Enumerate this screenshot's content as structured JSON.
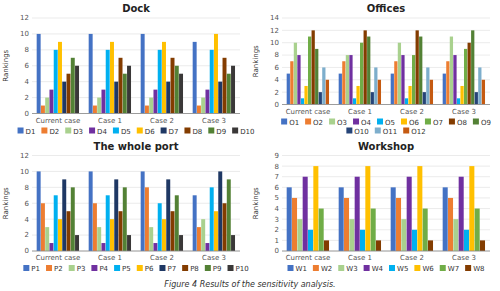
{
  "title": "Figure 4 Results of the sensitivity analysis.",
  "chart_data": [
    {
      "type": "bar",
      "title": "Dock",
      "y_label": "Rankings",
      "categories": [
        "Current case",
        "Case 1",
        "Case 2",
        "Case 3"
      ],
      "series": [
        {
          "name": "D1",
          "color": "#4472c4",
          "values": [
            10,
            10,
            10,
            9
          ]
        },
        {
          "name": "D2",
          "color": "#ed7d31",
          "values": [
            1,
            1,
            1,
            1
          ]
        },
        {
          "name": "D3",
          "color": "#a9d18e",
          "values": [
            2,
            2,
            2,
            2
          ]
        },
        {
          "name": "D4",
          "color": "#7030a0",
          "values": [
            3,
            3,
            3,
            3
          ]
        },
        {
          "name": "D5",
          "color": "#00b0f0",
          "values": [
            8,
            8,
            8,
            8
          ]
        },
        {
          "name": "D6",
          "color": "#ffc000",
          "values": [
            9,
            9,
            9,
            10
          ]
        },
        {
          "name": "D7",
          "color": "#1f3864",
          "values": [
            4,
            4,
            4,
            4
          ]
        },
        {
          "name": "D8",
          "color": "#833c00",
          "values": [
            5,
            7,
            7,
            7
          ]
        },
        {
          "name": "D9",
          "color": "#538135",
          "values": [
            7,
            5,
            6,
            5
          ]
        },
        {
          "name": "D10",
          "color": "#3a3838",
          "values": [
            6,
            6,
            5,
            6
          ]
        }
      ],
      "ylim": [
        0,
        12
      ],
      "yticks": [
        0,
        2,
        4,
        6,
        8,
        10,
        12
      ],
      "grid": true,
      "legend": "bottom"
    },
    {
      "type": "bar",
      "title": "Offices",
      "y_label": "Rankings",
      "categories": [
        "Current case",
        "Case 1",
        "Case 2",
        "Case 3"
      ],
      "series": [
        {
          "name": "O1",
          "color": "#4472c4",
          "values": [
            5,
            5,
            5,
            5
          ]
        },
        {
          "name": "O2",
          "color": "#ed7d31",
          "values": [
            7,
            7,
            7,
            7
          ]
        },
        {
          "name": "O3",
          "color": "#a9d18e",
          "values": [
            10,
            8,
            10,
            11
          ]
        },
        {
          "name": "O4",
          "color": "#7030a0",
          "values": [
            8,
            8,
            8,
            8
          ]
        },
        {
          "name": "O5",
          "color": "#00b0f0",
          "values": [
            1,
            1,
            1,
            1
          ]
        },
        {
          "name": "O6",
          "color": "#ffc000",
          "values": [
            3,
            3,
            3,
            3
          ]
        },
        {
          "name": "O7",
          "color": "#70ad47",
          "values": [
            11,
            10,
            8,
            9
          ]
        },
        {
          "name": "O8",
          "color": "#833c00",
          "values": [
            12,
            12,
            12,
            10
          ]
        },
        {
          "name": "O9",
          "color": "#538135",
          "values": [
            9,
            11,
            11,
            12
          ]
        },
        {
          "name": "O10",
          "color": "#264478",
          "values": [
            2,
            2,
            2,
            2
          ]
        },
        {
          "name": "O11",
          "color": "#7daecc",
          "values": [
            6,
            6,
            6,
            6
          ]
        },
        {
          "name": "O12",
          "color": "#c55a11",
          "values": [
            4,
            4,
            4,
            4
          ]
        }
      ],
      "ylim": [
        0,
        14
      ],
      "yticks": [
        0,
        2,
        4,
        6,
        8,
        10,
        12,
        14
      ],
      "grid": true,
      "legend": "bottom"
    },
    {
      "type": "bar",
      "title": "The whole port",
      "y_label": "Rankings",
      "categories": [
        "Current case",
        "Case 1",
        "Case 2",
        "Case 3"
      ],
      "series": [
        {
          "name": "P1",
          "color": "#4472c4",
          "values": [
            10,
            10,
            10,
            7
          ]
        },
        {
          "name": "P2",
          "color": "#ed7d31",
          "values": [
            6,
            6,
            8,
            3
          ]
        },
        {
          "name": "P3",
          "color": "#a9d18e",
          "values": [
            3,
            3,
            3,
            4
          ]
        },
        {
          "name": "P4",
          "color": "#7030a0",
          "values": [
            1,
            1,
            1,
            1
          ]
        },
        {
          "name": "P5",
          "color": "#00b0f0",
          "values": [
            7,
            7,
            6,
            8
          ]
        },
        {
          "name": "P6",
          "color": "#ffc000",
          "values": [
            4,
            4,
            4,
            5
          ]
        },
        {
          "name": "P7",
          "color": "#1f3864",
          "values": [
            9,
            9,
            9,
            10
          ]
        },
        {
          "name": "P8",
          "color": "#833c00",
          "values": [
            5,
            5,
            5,
            6
          ]
        },
        {
          "name": "P9",
          "color": "#538135",
          "values": [
            8,
            8,
            7,
            9
          ]
        },
        {
          "name": "P10",
          "color": "#3a3838",
          "values": [
            2,
            2,
            2,
            2
          ]
        }
      ],
      "ylim": [
        0,
        12
      ],
      "yticks": [
        0,
        2,
        4,
        6,
        8,
        10,
        12
      ],
      "grid": true,
      "legend": "bottom"
    },
    {
      "type": "bar",
      "title": "Workshop",
      "y_label": "Rankings",
      "categories": [
        "Current case",
        "Case 1",
        "Case 2",
        "Case 3"
      ],
      "series": [
        {
          "name": "W1",
          "color": "#4472c4",
          "values": [
            6,
            6,
            6,
            6
          ]
        },
        {
          "name": "W2",
          "color": "#ed7d31",
          "values": [
            5,
            5,
            5,
            5
          ]
        },
        {
          "name": "W3",
          "color": "#a9d18e",
          "values": [
            3,
            3,
            3,
            3
          ]
        },
        {
          "name": "W4",
          "color": "#7030a0",
          "values": [
            7,
            7,
            7,
            7
          ]
        },
        {
          "name": "W5",
          "color": "#00b0f0",
          "values": [
            2,
            2,
            2,
            2
          ]
        },
        {
          "name": "W6",
          "color": "#ffc000",
          "values": [
            8,
            8,
            8,
            8
          ]
        },
        {
          "name": "W7",
          "color": "#70ad47",
          "values": [
            4,
            4,
            4,
            4
          ]
        },
        {
          "name": "W8",
          "color": "#833c00",
          "values": [
            1,
            1,
            1,
            1
          ]
        }
      ],
      "ylim": [
        0,
        9
      ],
      "yticks": [
        0,
        1,
        2,
        3,
        4,
        5,
        6,
        7,
        8,
        9
      ],
      "grid": true,
      "legend": "bottom"
    }
  ]
}
